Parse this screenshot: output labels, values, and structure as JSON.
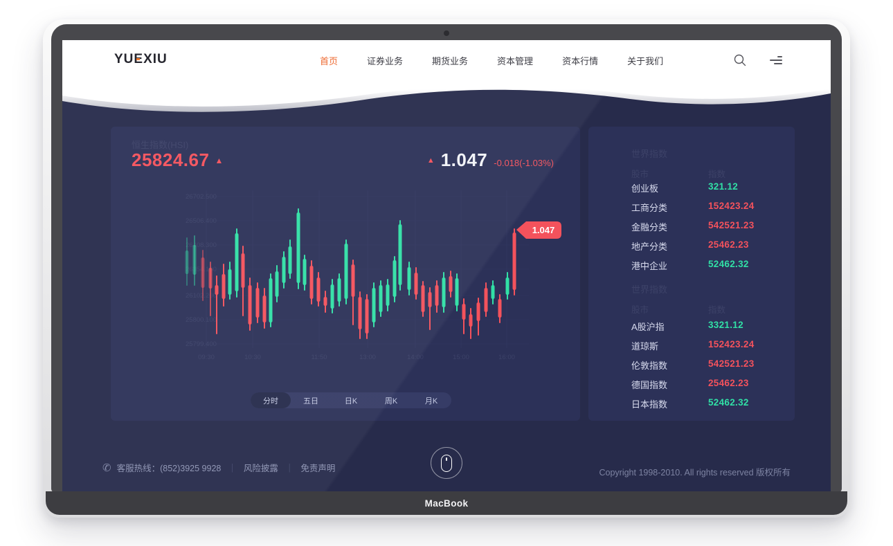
{
  "device": {
    "name": "MacBook"
  },
  "navbar": {
    "logo": "YUEXIU",
    "items": [
      {
        "label": "首页"
      },
      {
        "label": "证券业务"
      },
      {
        "label": "期货业务"
      },
      {
        "label": "资本管理"
      },
      {
        "label": "资本行情"
      },
      {
        "label": "关于我们"
      }
    ]
  },
  "hsi": {
    "title": "恒生指数(HSI)",
    "price": "25824.67",
    "up_arrow": "▲",
    "change_value": "1.047",
    "change_detail": "-0.018(-1.03%)"
  },
  "chart_data": {
    "type": "candlestick",
    "title": "恒生指数(HSI)",
    "x_labels": [
      "09:30",
      "10:30",
      "11:50",
      "13:00",
      "14:00",
      "15:00",
      "16:00"
    ],
    "y_labels": [
      "26702.500",
      "26506.400",
      "26408.300",
      "26354.100",
      "26102.200",
      "25800.100",
      "25799.400"
    ],
    "tabs": [
      "分时",
      "五日",
      "日K",
      "周K",
      "月K"
    ],
    "active_tab": 0,
    "flag_label": "1.047",
    "up_color": "#31e0a6",
    "down_color": "#f4525c",
    "grid_color": "#313660",
    "axis_color": "#3c4268",
    "grid": {
      "h": [
        17,
        52,
        87,
        122,
        160,
        195,
        230
      ],
      "v": [
        30,
        97,
        193,
        263,
        332,
        398,
        464
      ]
    },
    "candles": [
      [
        2,
        95,
        129,
        77,
        145,
        "g",
        0.35
      ],
      [
        13,
        87,
        130,
        74,
        145,
        "g",
        0.45
      ],
      [
        25,
        105,
        149,
        95,
        167,
        "r",
        0.5
      ],
      [
        36,
        120,
        150,
        112,
        189,
        "r",
        0.7
      ],
      [
        45,
        145,
        159,
        132,
        215,
        "r",
        1
      ],
      [
        55,
        129,
        165,
        115,
        175,
        "r",
        1
      ],
      [
        64,
        122,
        159,
        112,
        165,
        "g",
        1
      ],
      [
        74,
        70,
        154,
        64,
        162,
        "g",
        1
      ],
      [
        83,
        99,
        149,
        89,
        189,
        "r",
        1
      ],
      [
        93,
        145,
        202,
        135,
        210,
        "r",
        1
      ],
      [
        104,
        149,
        192,
        142,
        199,
        "r",
        1
      ],
      [
        114,
        160,
        199,
        150,
        207,
        "r",
        1
      ],
      [
        123,
        135,
        199,
        129,
        205,
        "g",
        1
      ],
      [
        132,
        125,
        162,
        117,
        169,
        "g",
        1
      ],
      [
        142,
        104,
        142,
        97,
        149,
        "g",
        1
      ],
      [
        151,
        89,
        129,
        80,
        135,
        "g",
        1
      ],
      [
        163,
        40,
        142,
        35,
        150,
        "g",
        1
      ],
      [
        172,
        107,
        145,
        102,
        152,
        "g",
        1
      ],
      [
        182,
        117,
        165,
        110,
        172,
        "r",
        1
      ],
      [
        192,
        134,
        169,
        127,
        175,
        "r",
        1
      ],
      [
        202,
        162,
        175,
        154,
        184,
        "r",
        1
      ],
      [
        212,
        144,
        179,
        137,
        185,
        "g",
        1
      ],
      [
        222,
        135,
        169,
        129,
        175,
        "g",
        1
      ],
      [
        232,
        85,
        165,
        80,
        172,
        "g",
        1
      ],
      [
        242,
        115,
        162,
        109,
        202,
        "r",
        1
      ],
      [
        252,
        162,
        209,
        155,
        222,
        "r",
        1
      ],
      [
        262,
        165,
        215,
        159,
        222,
        "r",
        1
      ],
      [
        272,
        149,
        199,
        142,
        205,
        "g",
        1
      ],
      [
        282,
        145,
        184,
        139,
        190,
        "g",
        1
      ],
      [
        292,
        144,
        175,
        137,
        182,
        "g",
        1
      ],
      [
        302,
        109,
        162,
        104,
        169,
        "g",
        1
      ],
      [
        310,
        57,
        145,
        52,
        152,
        "g",
        1
      ],
      [
        323,
        119,
        152,
        112,
        159,
        "g",
        1
      ],
      [
        333,
        127,
        159,
        120,
        165,
        "r",
        1
      ],
      [
        343,
        145,
        184,
        140,
        190,
        "r",
        1
      ],
      [
        353,
        155,
        177,
        149,
        209,
        "r",
        1
      ],
      [
        363,
        145,
        175,
        139,
        184,
        "r",
        1
      ],
      [
        373,
        134,
        177,
        127,
        184,
        "g",
        1
      ],
      [
        383,
        132,
        155,
        125,
        162,
        "r",
        1
      ],
      [
        392,
        135,
        175,
        129,
        182,
        "g",
        1
      ],
      [
        402,
        172,
        195,
        165,
        215,
        "r",
        1
      ],
      [
        412,
        187,
        205,
        179,
        222,
        "r",
        1
      ],
      [
        423,
        170,
        197,
        164,
        217,
        "r",
        1
      ],
      [
        434,
        149,
        184,
        142,
        190,
        "r",
        1
      ],
      [
        444,
        145,
        165,
        139,
        172,
        "g",
        1
      ],
      [
        454,
        165,
        192,
        159,
        199,
        "r",
        1
      ],
      [
        465,
        134,
        159,
        127,
        165,
        "g",
        1
      ],
      [
        475,
        69,
        152,
        64,
        159,
        "r",
        1
      ]
    ]
  },
  "world_indices": [
    {
      "title": "世界指数",
      "col_market": "股市",
      "col_index": "指数",
      "rows": [
        {
          "name": "创业板",
          "value": "321.12",
          "trend": "up"
        },
        {
          "name": "工商分类",
          "value": "152423.24",
          "trend": "down"
        },
        {
          "name": "金融分类",
          "value": "542521.23",
          "trend": "down"
        },
        {
          "name": "地产分类",
          "value": "25462.23",
          "trend": "down"
        },
        {
          "name": "港中企业",
          "value": "52462.32",
          "trend": "up"
        }
      ]
    },
    {
      "title": "世界指数",
      "col_market": "股市",
      "col_index": "指数",
      "rows": [
        {
          "name": "A股沪指",
          "value": "3321.12",
          "trend": "up"
        },
        {
          "name": "道琼斯",
          "value": "152423.24",
          "trend": "down"
        },
        {
          "name": "伦敦指数",
          "value": "542521.23",
          "trend": "down"
        },
        {
          "name": "德国指数",
          "value": "25462.23",
          "trend": "down"
        },
        {
          "name": "日本指数",
          "value": "52462.32",
          "trend": "up"
        }
      ]
    }
  ],
  "footer": {
    "hotline": "客服热线：(852)3925 9928",
    "divider": "｜",
    "links": [
      {
        "label": "风险披露"
      },
      {
        "label": "免责声明"
      }
    ],
    "copyright": "Copyright 1998-2010. All rights reserved 版权所有"
  },
  "colors": {
    "up": "#31e0a6",
    "down": "#f4525c",
    "background": "#272b4a",
    "card": "#2c3158",
    "nav_active": "#ee6a31"
  }
}
